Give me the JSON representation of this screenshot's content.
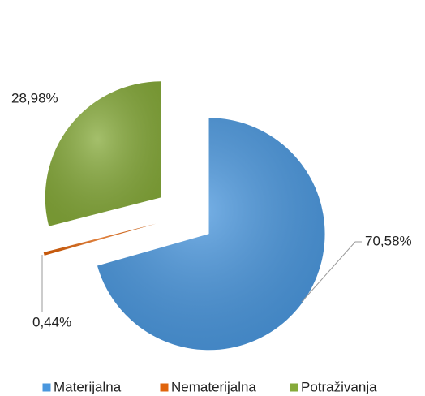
{
  "chart_data": {
    "type": "pie",
    "categories": [
      "Materijalna",
      "Nematerijalna",
      "Potraživanja"
    ],
    "values": [
      70.58,
      0.44,
      28.98
    ],
    "value_labels": [
      "70,58%",
      "0,44%",
      "28,98%"
    ],
    "colors": [
      "#4a97de",
      "#e0640c",
      "#86aa3a"
    ],
    "legend": "bottom"
  }
}
